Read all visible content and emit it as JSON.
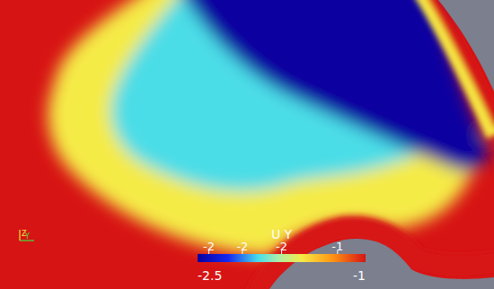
{
  "chart_data": {
    "type": "field",
    "title": "U Y",
    "regions": [
      {
        "value": -1
      },
      {
        "value": -1.57
      },
      {
        "value": -1.95
      },
      {
        "value": -2.5
      },
      {
        "value": -1
      },
      {
        "value": -1
      }
    ],
    "colorbar": {
      "range": [
        -2.5,
        -1
      ],
      "ticks": [
        {
          "value": -2.4,
          "label": "-2"
        },
        {
          "value": -2.1,
          "label": "-2"
        },
        {
          "value": -1.75,
          "label": "-2"
        },
        {
          "value": -1.25,
          "label": "-1"
        }
      ]
    },
    "axes_labels": {
      "vertical": "Z",
      "horizontal": "Y"
    }
  }
}
